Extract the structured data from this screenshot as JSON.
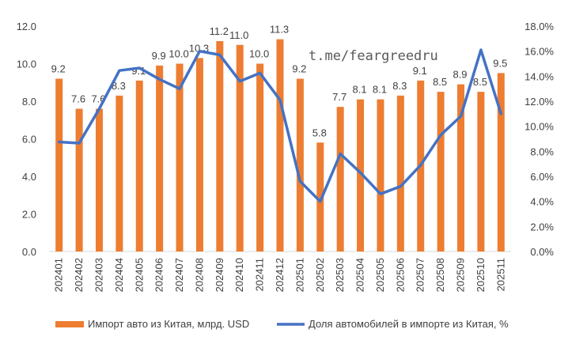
{
  "chart_data": {
    "type": "bar+line",
    "categories": [
      "202401",
      "202402",
      "202403",
      "202404",
      "202405",
      "202406",
      "202407",
      "202408",
      "202409",
      "202410",
      "202411",
      "202412",
      "202501",
      "202502",
      "202503",
      "202504",
      "202505",
      "202506",
      "202507",
      "202508",
      "202509",
      "202510",
      "202511"
    ],
    "series": [
      {
        "name": "Импорт авто из Китая, млрд. USD",
        "type": "bar",
        "axis": "left",
        "color": "#ED7D31",
        "values": [
          9.2,
          7.6,
          7.6,
          8.3,
          9.1,
          9.9,
          10.0,
          10.3,
          11.2,
          11.0,
          10.0,
          11.3,
          9.2,
          5.8,
          7.7,
          8.1,
          8.1,
          8.3,
          9.1,
          8.5,
          8.9,
          8.5,
          9.5
        ],
        "labels": [
          "9.2",
          "7.6",
          "7.6",
          "8.3",
          "9.1",
          "9.9",
          "10.0",
          "10.3",
          "11.2",
          "11.0",
          "10.0",
          "11.3",
          "9.2",
          "5.8",
          "7.7",
          "8.1",
          "8.1",
          "8.3",
          "9.1",
          "8.5",
          "8.9",
          "8.5",
          "9.5"
        ]
      },
      {
        "name": "Доля автомобилей в импорте из Китая, %",
        "type": "line",
        "axis": "right",
        "color": "#4472C4",
        "values": [
          0.0875,
          0.0865,
          0.114,
          0.1445,
          0.1465,
          0.1375,
          0.13,
          0.16,
          0.157,
          0.136,
          0.1425,
          0.121,
          0.056,
          0.04,
          0.078,
          0.063,
          0.046,
          0.052,
          0.069,
          0.093,
          0.108,
          0.161,
          0.11
        ]
      }
    ],
    "y_left": {
      "min": 0,
      "max": 12,
      "ticks": [
        "0.0",
        "2.0",
        "4.0",
        "6.0",
        "8.0",
        "10.0",
        "12.0"
      ]
    },
    "y_right": {
      "min": 0,
      "max": 0.18,
      "ticks": [
        "0.0%",
        "2.0%",
        "4.0%",
        "6.0%",
        "8.0%",
        "10.0%",
        "12.0%",
        "14.0%",
        "16.0%",
        "18.0%"
      ]
    },
    "grid": false,
    "legend_position": "bottom",
    "watermark": "t.me/feargreedru"
  }
}
